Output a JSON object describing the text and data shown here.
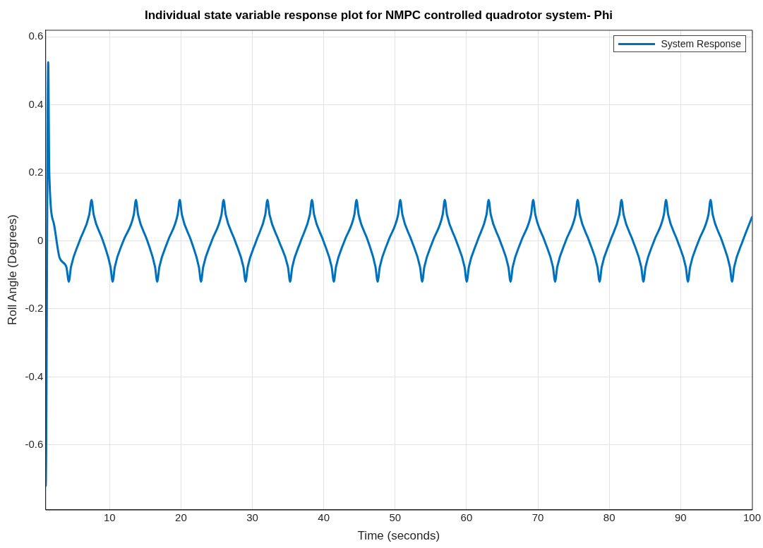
{
  "chart_data": {
    "type": "line",
    "title": "Individual state variable response plot for NMPC controlled quadrotor system- Phi",
    "xlabel": "Time (seconds)",
    "ylabel": "Roll Angle (Degrees)",
    "xlim": [
      1,
      100
    ],
    "xticks": [
      10,
      20,
      30,
      40,
      50,
      60,
      70,
      80,
      90,
      100
    ],
    "ylim": [
      -0.79,
      0.62
    ],
    "yticks": [
      -0.6,
      -0.4,
      -0.2,
      0,
      0.2,
      0.4,
      0.6
    ],
    "grid": true,
    "legend": "top right",
    "marker": "none",
    "line_style": "solid",
    "series": [
      {
        "name": "System Response",
        "color": "#0072bd",
        "x": [
          1.0,
          1.05,
          1.4,
          1.55,
          2.2,
          3.0,
          3.95,
          4.29,
          4.59,
          5.8,
          7.15,
          7.47,
          7.77,
          9.07,
          10.13,
          10.43,
          10.73,
          11.93,
          13.39,
          13.69,
          13.99,
          15.29,
          16.37,
          16.67,
          16.97,
          18.17,
          19.53,
          19.83,
          20.13,
          21.43,
          22.51,
          22.81,
          23.11,
          24.31,
          25.67,
          25.97,
          26.27,
          27.57,
          28.75,
          29.05,
          29.35,
          30.55,
          31.81,
          32.11,
          32.41,
          33.71,
          34.99,
          35.29,
          35.59,
          36.79,
          38.05,
          38.35,
          38.65,
          39.95,
          41.11,
          41.41,
          41.71,
          42.91,
          44.29,
          44.59,
          44.89,
          46.19,
          47.25,
          47.55,
          47.85,
          49.05,
          50.42,
          50.72,
          51.02,
          52.32,
          53.49,
          53.79,
          54.09,
          55.29,
          56.66,
          56.96,
          57.26,
          58.56,
          59.73,
          60.03,
          60.33,
          61.53,
          62.8,
          63.1,
          63.4,
          64.7,
          65.87,
          66.17,
          66.47,
          67.67,
          69.04,
          69.34,
          69.64,
          70.94,
          72.11,
          72.41,
          72.71,
          73.91,
          75.27,
          75.57,
          75.87,
          77.17,
          78.34,
          78.64,
          78.94,
          80.14,
          81.41,
          81.71,
          82.01,
          83.31,
          84.48,
          84.78,
          85.08,
          86.28,
          87.65,
          87.95,
          88.25,
          89.55,
          90.72,
          91.02,
          91.32,
          92.52,
          93.89,
          94.19,
          94.49,
          95.79,
          96.9,
          97.2,
          97.5,
          98.7,
          100
        ],
        "values": [
          -0.6,
          -0.72,
          0.525,
          0.2,
          0.05,
          -0.05,
          -0.077,
          -0.12,
          -0.077,
          0,
          0.077,
          0.12,
          0.077,
          0,
          -0.077,
          -0.12,
          -0.077,
          0,
          0.077,
          0.12,
          0.077,
          0,
          -0.077,
          -0.12,
          -0.077,
          0,
          0.077,
          0.12,
          0.077,
          0,
          -0.077,
          -0.12,
          -0.077,
          0,
          0.077,
          0.12,
          0.077,
          0,
          -0.077,
          -0.12,
          -0.077,
          0,
          0.077,
          0.12,
          0.077,
          0,
          -0.077,
          -0.12,
          -0.077,
          0,
          0.077,
          0.12,
          0.077,
          0,
          -0.077,
          -0.12,
          -0.077,
          0,
          0.077,
          0.12,
          0.077,
          0,
          -0.077,
          -0.12,
          -0.077,
          0,
          0.077,
          0.12,
          0.077,
          0,
          -0.077,
          -0.12,
          -0.077,
          0,
          0.077,
          0.12,
          0.077,
          0,
          -0.077,
          -0.12,
          -0.077,
          0,
          0.077,
          0.12,
          0.077,
          0,
          -0.077,
          -0.12,
          -0.077,
          0,
          0.077,
          0.12,
          0.077,
          0,
          -0.077,
          -0.12,
          -0.077,
          0,
          0.077,
          0.12,
          0.077,
          0,
          -0.077,
          -0.12,
          -0.077,
          0,
          0.077,
          0.12,
          0.077,
          0,
          -0.077,
          -0.12,
          -0.077,
          0,
          0.077,
          0.12,
          0.077,
          0,
          -0.077,
          -0.12,
          -0.077,
          0,
          0.077,
          0.12,
          0.077,
          0,
          -0.077,
          -0.12,
          -0.077,
          0,
          0.07
        ]
      }
    ]
  }
}
